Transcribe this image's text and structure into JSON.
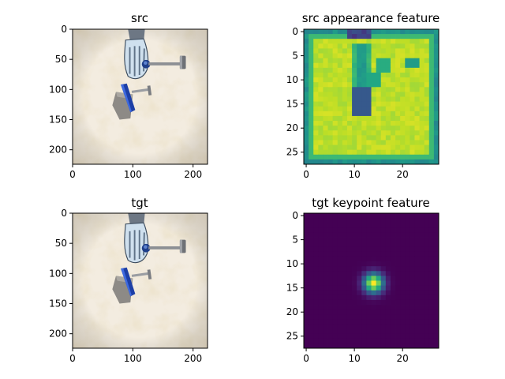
{
  "chart_data": [
    {
      "type": "image",
      "title": "src",
      "content": "robot hand manipulating a blue-handled tool and a gray block on a marble tabletop",
      "xlim": [
        0,
        224
      ],
      "ylim": [
        224,
        0
      ],
      "xticks": [
        "0",
        "100",
        "200"
      ],
      "yticks": [
        "0",
        "50",
        "100",
        "150",
        "200"
      ]
    },
    {
      "type": "heatmap",
      "title": "src appearance feature",
      "colormap": "viridis",
      "xlim": [
        0,
        27
      ],
      "ylim": [
        27,
        0
      ],
      "xticks": [
        "0",
        "10",
        "20"
      ],
      "yticks": [
        "0",
        "5",
        "10",
        "15",
        "20",
        "25"
      ],
      "value_range": [
        0,
        1
      ],
      "description": "high values (yellow) across most of the map with lower-valued regions (blue/teal) along a vertical band near x=10-12 and darker borders"
    },
    {
      "type": "image",
      "title": "tgt",
      "content": "robot hand manipulating a blue-handled tool and a gray block on a marble tabletop",
      "xlim": [
        0,
        224
      ],
      "ylim": [
        224,
        0
      ],
      "xticks": [
        "0",
        "100",
        "200"
      ],
      "yticks": [
        "0",
        "50",
        "100",
        "150",
        "200"
      ]
    },
    {
      "type": "heatmap",
      "title": "tgt keypoint feature",
      "colormap": "viridis",
      "xlim": [
        0,
        27
      ],
      "ylim": [
        27,
        0
      ],
      "xticks": [
        "0",
        "10",
        "20"
      ],
      "yticks": [
        "0",
        "5",
        "10",
        "15",
        "20",
        "25"
      ],
      "value_range": [
        0,
        1
      ],
      "peak": {
        "x": 14,
        "y": 14,
        "value": 1.0
      },
      "description": "single gaussian blob centered near (14, 14)"
    }
  ]
}
